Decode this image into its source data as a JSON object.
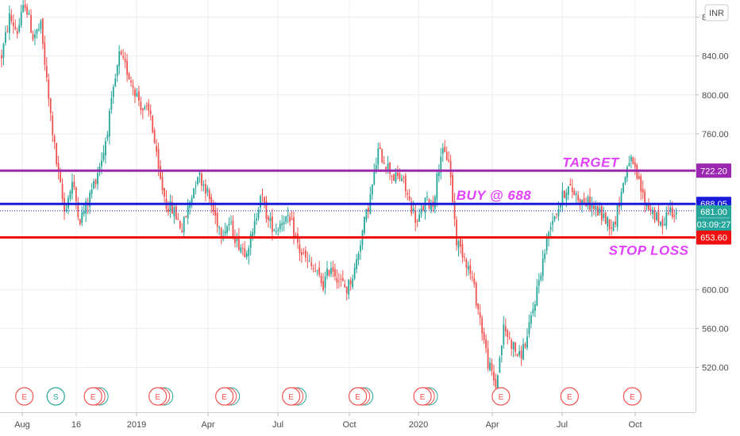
{
  "colors": {
    "up": "#26a69a",
    "down": "#ef5350",
    "target": "#9c27b0",
    "buy": "#1a1adb",
    "stop": "#f01010",
    "annotation": "#e040fb",
    "grid": "#ececec",
    "axis": "#d0d0d0",
    "last_price": "#26a69a",
    "event_e": "#ef5350",
    "event_s": "#26a69a"
  },
  "currency_button": "INR",
  "chart_data": {
    "type": "candlestick",
    "x_tick_labels": [
      "Aug",
      "16",
      "2019",
      "Apr",
      "Jul",
      "Oct",
      "2020",
      "Apr",
      "Jul",
      "Oct"
    ],
    "y_tick_labels": [
      "880.00",
      "840.00",
      "800.00",
      "760.00",
      "600.00",
      "560.00",
      "520.00"
    ],
    "ylim": [
      490,
      900
    ],
    "grid": true,
    "price_path": [
      [
        0,
        840
      ],
      [
        4,
        880
      ],
      [
        8,
        865
      ],
      [
        12,
        895
      ],
      [
        16,
        860
      ],
      [
        20,
        870
      ],
      [
        24,
        795
      ],
      [
        28,
        730
      ],
      [
        32,
        680
      ],
      [
        36,
        710
      ],
      [
        40,
        672
      ],
      [
        44,
        690
      ],
      [
        48,
        715
      ],
      [
        52,
        742
      ],
      [
        56,
        790
      ],
      [
        60,
        840
      ],
      [
        64,
        825
      ],
      [
        68,
        805
      ],
      [
        72,
        785
      ],
      [
        76,
        780
      ],
      [
        80,
        720
      ],
      [
        84,
        688
      ],
      [
        88,
        680
      ],
      [
        92,
        662
      ],
      [
        96,
        690
      ],
      [
        100,
        720
      ],
      [
        104,
        705
      ],
      [
        108,
        680
      ],
      [
        112,
        660
      ],
      [
        116,
        668
      ],
      [
        120,
        650
      ],
      [
        124,
        640
      ],
      [
        128,
        655
      ],
      [
        132,
        700
      ],
      [
        136,
        670
      ],
      [
        140,
        662
      ],
      [
        144,
        675
      ],
      [
        148,
        665
      ],
      [
        152,
        640
      ],
      [
        156,
        628
      ],
      [
        160,
        618
      ],
      [
        164,
        605
      ],
      [
        168,
        625
      ],
      [
        172,
        610
      ],
      [
        176,
        600
      ],
      [
        180,
        620
      ],
      [
        184,
        660
      ],
      [
        188,
        695
      ],
      [
        192,
        742
      ],
      [
        196,
        730
      ],
      [
        200,
        715
      ],
      [
        204,
        715
      ],
      [
        208,
        690
      ],
      [
        212,
        668
      ],
      [
        216,
        690
      ],
      [
        220,
        688
      ],
      [
        224,
        740
      ],
      [
        228,
        735
      ],
      [
        232,
        650
      ],
      [
        236,
        635
      ],
      [
        240,
        610
      ],
      [
        244,
        570
      ],
      [
        248,
        525
      ],
      [
        252,
        500
      ],
      [
        256,
        560
      ],
      [
        260,
        545
      ],
      [
        264,
        530
      ],
      [
        268,
        550
      ],
      [
        272,
        590
      ],
      [
        276,
        630
      ],
      [
        280,
        670
      ],
      [
        284,
        685
      ],
      [
        288,
        705
      ],
      [
        292,
        700
      ],
      [
        296,
        690
      ],
      [
        300,
        688
      ],
      [
        304,
        680
      ],
      [
        308,
        672
      ],
      [
        312,
        665
      ],
      [
        316,
        700
      ],
      [
        320,
        735
      ],
      [
        324,
        715
      ],
      [
        328,
        690
      ],
      [
        332,
        680
      ],
      [
        336,
        665
      ],
      [
        340,
        682
      ],
      [
        344,
        681
      ]
    ],
    "horizontal_lines": [
      {
        "name": "target",
        "value": 722.2,
        "label": "TARGET",
        "price_tag": "722.20"
      },
      {
        "name": "buy",
        "value": 688.05,
        "label": "BUY @ 688",
        "price_tag": "688.05"
      },
      {
        "name": "stop-loss",
        "value": 653.6,
        "label": "STOP LOSS",
        "price_tag": "653.60"
      }
    ],
    "last_price": {
      "value": 681.0,
      "label": "681.00",
      "countdown": "03:09:27"
    },
    "events": [
      {
        "letter": "E",
        "day": 10,
        "kind": "earnings",
        "stack": 1
      },
      {
        "letter": "S",
        "day": 26,
        "kind": "split",
        "stack": 1
      },
      {
        "letter": "E",
        "day": 45,
        "kind": "earnings",
        "stack": 3
      },
      {
        "letter": "E",
        "day": 78,
        "kind": "earnings",
        "stack": 3
      },
      {
        "letter": "E",
        "day": 112,
        "kind": "earnings",
        "stack": 3
      },
      {
        "letter": "E",
        "day": 146,
        "kind": "earnings",
        "stack": 3
      },
      {
        "letter": "E",
        "day": 180,
        "kind": "earnings",
        "stack": 3
      },
      {
        "letter": "E",
        "day": 213,
        "kind": "earnings",
        "stack": 3
      },
      {
        "letter": "E",
        "day": 253,
        "kind": "earnings",
        "stack": 1
      },
      {
        "letter": "E",
        "day": 288,
        "kind": "earnings",
        "stack": 1
      },
      {
        "letter": "E",
        "day": 320,
        "kind": "earnings",
        "stack": 1
      }
    ]
  }
}
